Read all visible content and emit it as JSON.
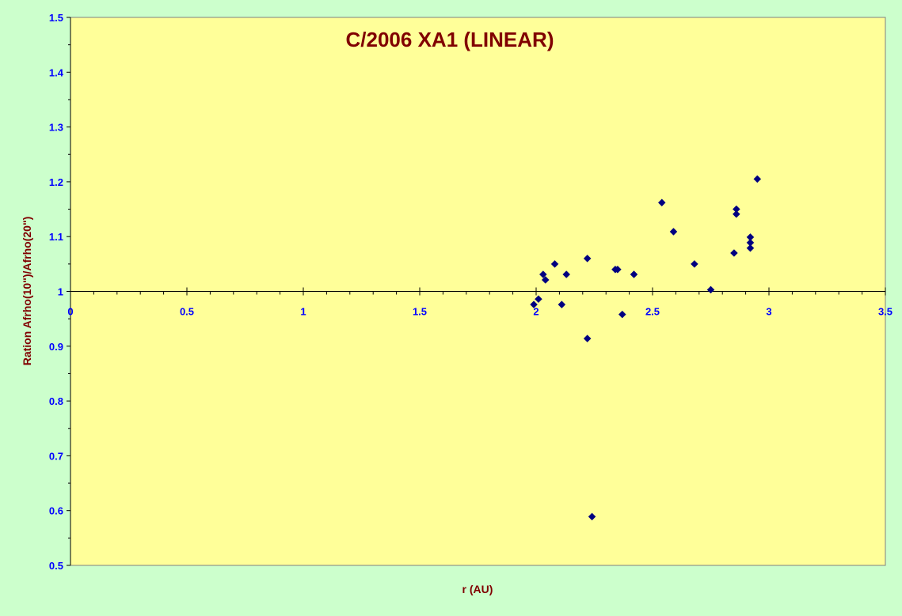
{
  "chart_data": {
    "type": "scatter",
    "title": "C/2006 XA1 (LINEAR)",
    "xlabel": "r (AU)",
    "ylabel": "Ration Afrho(10\")/Afrho(20\")",
    "xlim": [
      0,
      3.5
    ],
    "ylim": [
      0.5,
      1.5
    ],
    "x_ticks": [
      0,
      0.5,
      1,
      1.5,
      2,
      2.5,
      3,
      3.5
    ],
    "x_tick_labels": [
      "0",
      "0.5",
      "1",
      "1.5",
      "2",
      "2.5",
      "3",
      "3.5"
    ],
    "y_ticks": [
      0.5,
      0.6,
      0.7,
      0.8,
      0.9,
      1,
      1.1,
      1.2,
      1.3,
      1.4,
      1.5
    ],
    "y_tick_labels": [
      "0.5",
      "0.6",
      "0.7",
      "0.8",
      "0.9",
      "1",
      "1.1",
      "1.2",
      "1.3",
      "1.4",
      "1.5"
    ],
    "x_axis_crosses_at_y": 1,
    "grid": false,
    "legend": "none",
    "marker": "diamond",
    "colors": {
      "page_background": "#ccffcc",
      "plot_background": "#ffff99",
      "marker": "#000080",
      "title": "#800000",
      "axis_title": "#800000",
      "tick_label": "#0000ff",
      "axis_line": "#000000"
    },
    "series": [
      {
        "points": [
          [
            1.99,
            0.976
          ],
          [
            2.01,
            0.986
          ],
          [
            2.03,
            1.031
          ],
          [
            2.04,
            1.021
          ],
          [
            2.08,
            1.05
          ],
          [
            2.11,
            0.976
          ],
          [
            2.13,
            1.031
          ],
          [
            2.22,
            1.06
          ],
          [
            2.22,
            0.914
          ],
          [
            2.24,
            0.589
          ],
          [
            2.34,
            1.04
          ],
          [
            2.35,
            1.04
          ],
          [
            2.37,
            0.958
          ],
          [
            2.42,
            1.031
          ],
          [
            2.54,
            1.162
          ],
          [
            2.59,
            1.109
          ],
          [
            2.68,
            1.05
          ],
          [
            2.75,
            1.003
          ],
          [
            2.85,
            1.07
          ],
          [
            2.86,
            1.15
          ],
          [
            2.86,
            1.141
          ],
          [
            2.92,
            1.099
          ],
          [
            2.92,
            1.089
          ],
          [
            2.92,
            1.079
          ],
          [
            2.95,
            1.205
          ]
        ]
      }
    ]
  }
}
